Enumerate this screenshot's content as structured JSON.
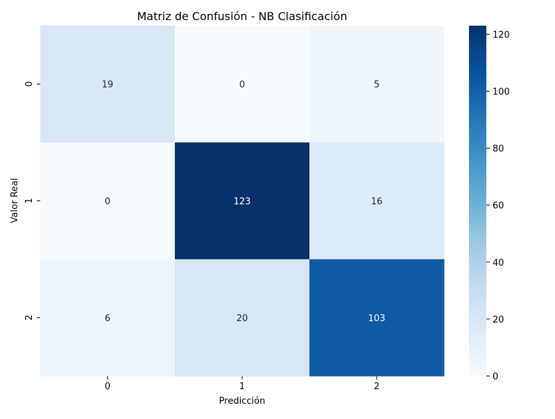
{
  "chart_data": {
    "type": "heatmap",
    "title": "Matriz de Confusión - NB Clasificación",
    "xlabel": "Predicción",
    "ylabel": "Valor Real",
    "x_categories": [
      "0",
      "1",
      "2"
    ],
    "y_categories": [
      "0",
      "1",
      "2"
    ],
    "values": [
      [
        19,
        0,
        5
      ],
      [
        0,
        123,
        16
      ],
      [
        6,
        20,
        103
      ]
    ],
    "colormap": "Blues",
    "colorbar": {
      "range": [
        0,
        123
      ],
      "ticks": [
        0,
        20,
        40,
        60,
        80,
        100,
        120
      ]
    },
    "annotations": true
  }
}
